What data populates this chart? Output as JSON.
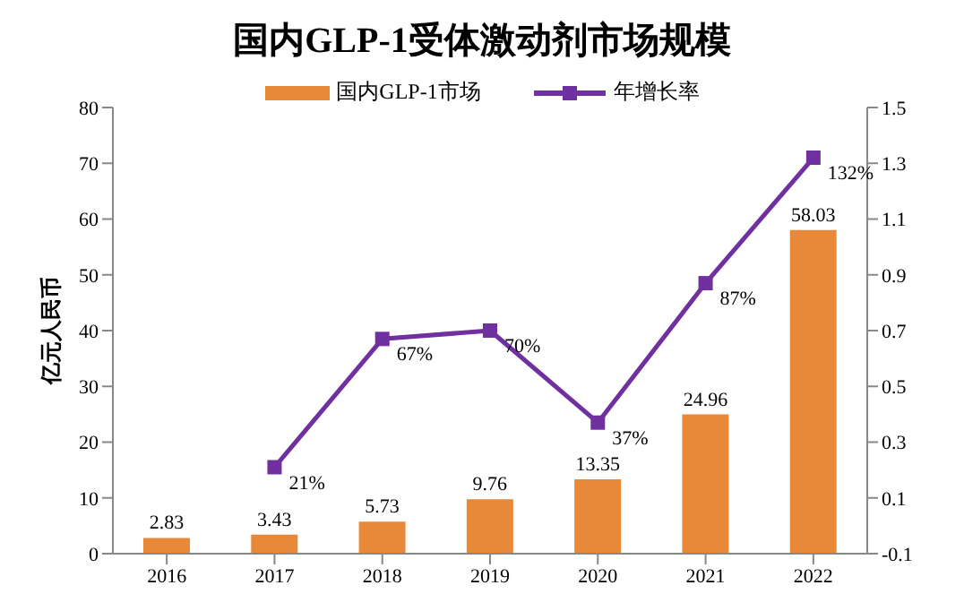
{
  "chart_data": {
    "type": "bar",
    "title": "国内GLP-1受体激动剂市场规模",
    "ylabel": "亿元人民币",
    "categories": [
      "2016",
      "2017",
      "2018",
      "2019",
      "2020",
      "2021",
      "2022"
    ],
    "series": [
      {
        "name": "国内GLP-1市场",
        "color": "#e8893a",
        "values": [
          2.83,
          3.43,
          5.73,
          9.76,
          13.35,
          24.96,
          58.03
        ],
        "data_labels": true
      },
      {
        "name": "年增长率",
        "type": "line",
        "axis": "y2",
        "color": "#7030a0",
        "marker": "square",
        "values": [
          null,
          0.21,
          0.67,
          0.7,
          0.37,
          0.87,
          1.32
        ],
        "value_labels": [
          null,
          "21%",
          "67%",
          "70%",
          "37%",
          "87%",
          "132%"
        ]
      }
    ],
    "ylim": [
      0,
      80
    ],
    "yticks": [
      0,
      10,
      20,
      30,
      40,
      50,
      60,
      70,
      80
    ],
    "y2lim": [
      -0.1,
      1.5
    ],
    "y2ticks": [
      -0.1,
      0.1,
      0.3,
      0.5,
      0.7,
      0.9,
      1.1,
      1.3,
      1.5
    ],
    "legend": "top",
    "grid": false
  }
}
